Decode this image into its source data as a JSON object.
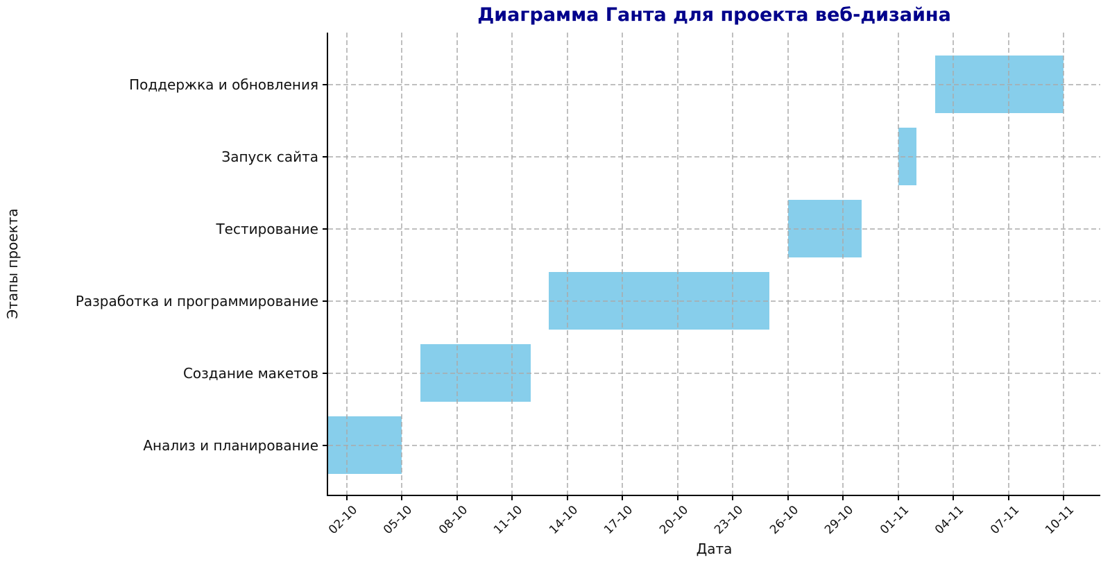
{
  "chart_data": {
    "type": "bar",
    "variant": "horizontal-gantt",
    "title": "Диаграмма Ганта для проекта веб-дизайна",
    "xlabel": "Дата",
    "ylabel": "Этапы проекта",
    "legend": "none",
    "grid": {
      "visible": true,
      "style": "dashed",
      "drawn_over_bars": true
    },
    "colors": {
      "bar": "#87CEEB",
      "title": "#00008B",
      "text": "#111111",
      "grid": "#c3c3c3",
      "spine": "#000000"
    },
    "x_range_days": [
      0,
      42
    ],
    "x_ticks": [
      {
        "label": "02-10",
        "day": 1
      },
      {
        "label": "05-10",
        "day": 4
      },
      {
        "label": "08-10",
        "day": 7
      },
      {
        "label": "11-10",
        "day": 10
      },
      {
        "label": "14-10",
        "day": 13
      },
      {
        "label": "17-10",
        "day": 16
      },
      {
        "label": "20-10",
        "day": 19
      },
      {
        "label": "23-10",
        "day": 22
      },
      {
        "label": "26-10",
        "day": 25
      },
      {
        "label": "29-10",
        "day": 28
      },
      {
        "label": "01-11",
        "day": 31
      },
      {
        "label": "04-11",
        "day": 34
      },
      {
        "label": "07-11",
        "day": 37
      },
      {
        "label": "10-11",
        "day": 40
      }
    ],
    "categories_top_to_bottom": [
      "Поддержка и обновления",
      "Запуск сайта",
      "Тестирование",
      "Разработка и программирование",
      "Создание макетов",
      "Анализ и планирование"
    ],
    "tasks": [
      {
        "label": "Анализ и планирование",
        "start": "01-10",
        "end": "05-10",
        "start_day": 0,
        "end_day": 4,
        "row_from_bottom": 0
      },
      {
        "label": "Создание макетов",
        "start": "06-10",
        "end": "12-10",
        "start_day": 5,
        "end_day": 11,
        "row_from_bottom": 1
      },
      {
        "label": "Разработка и программирование",
        "start": "13-10",
        "end": "25-10",
        "start_day": 12,
        "end_day": 24,
        "row_from_bottom": 2
      },
      {
        "label": "Тестирование",
        "start": "26-10",
        "end": "30-10",
        "start_day": 25,
        "end_day": 29,
        "row_from_bottom": 3
      },
      {
        "label": "Запуск сайта",
        "start": "01-11",
        "end": "02-11",
        "start_day": 31,
        "end_day": 32,
        "row_from_bottom": 4
      },
      {
        "label": "Поддержка и обновления",
        "start": "03-11",
        "end": "10-11",
        "start_day": 33,
        "end_day": 40,
        "row_from_bottom": 5
      }
    ]
  }
}
